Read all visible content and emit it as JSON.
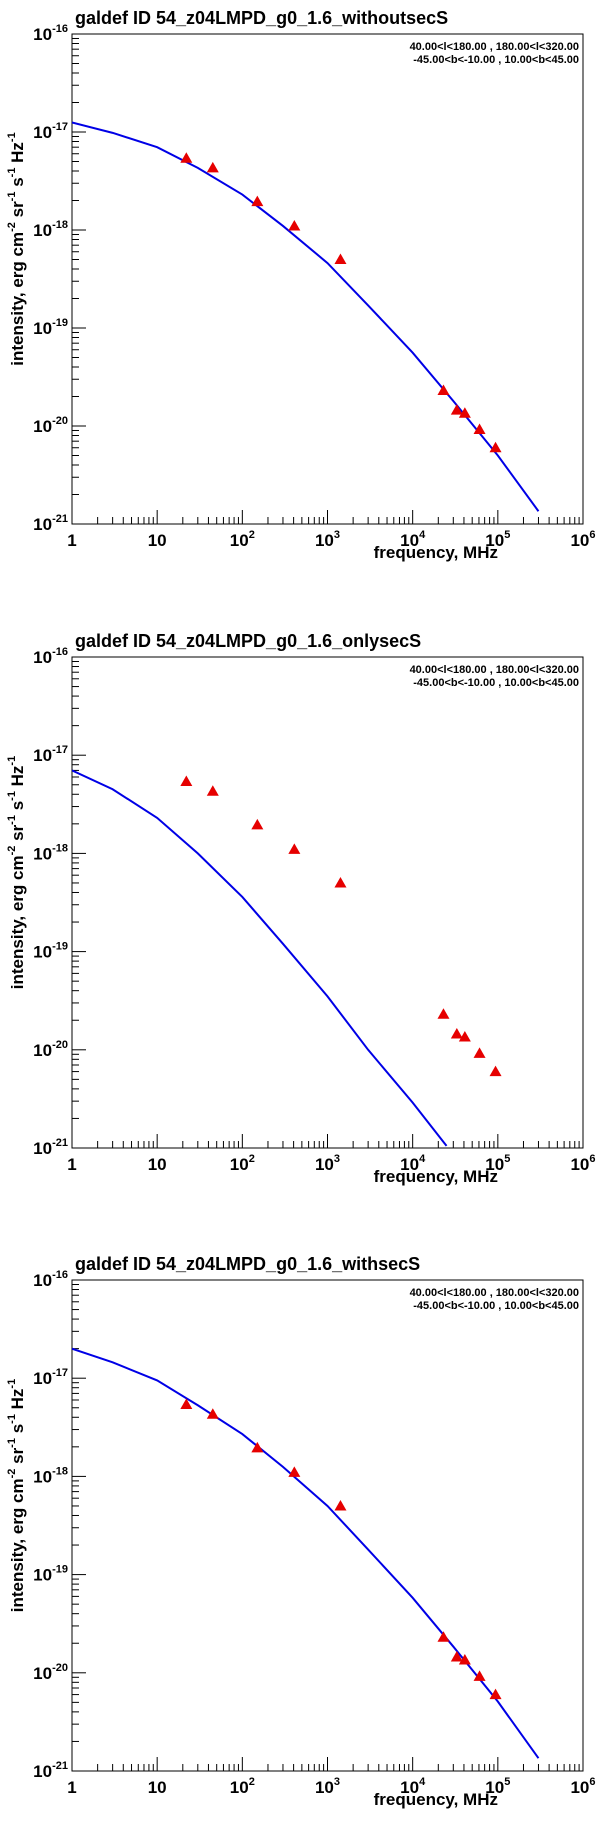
{
  "chart_data": [
    {
      "type": "line",
      "title": "galdef ID 54_z04LMPD_g0_1.6_withoutsecS",
      "region_line1": "40.00<l<180.00 , 180.00<l<320.00",
      "region_line2": "-45.00<b<-10.00 , 10.00<b<45.00",
      "xlabel": "frequency, MHz",
      "ylabel": "intensity, erg cm-2 sr-1 s-1 Hz-1",
      "xscale": "log",
      "yscale": "log",
      "xlim": [
        1,
        1000000
      ],
      "ylim": [
        1e-21,
        1e-16
      ],
      "x_ticks": [
        "1",
        "10",
        "10^2",
        "10^3",
        "10^4",
        "10^5",
        "10^6"
      ],
      "y_ticks": [
        "10^-21",
        "10^-20",
        "10^-19",
        "10^-18",
        "10^-17",
        "10^-16"
      ],
      "model_curve": {
        "x": [
          1,
          3,
          10,
          30,
          100,
          300,
          1000,
          3000,
          10000,
          30000,
          100000,
          300000
        ],
        "y": [
          1.25e-17,
          9.8e-18,
          7e-18,
          4.3e-18,
          2.3e-18,
          1.1e-18,
          4.6e-19,
          1.7e-19,
          5.6e-20,
          1.8e-20,
          5e-21,
          1.35e-21
        ]
      },
      "data_points": {
        "x": [
          22,
          45,
          150,
          408,
          1420,
          23000,
          33000,
          41000,
          61000,
          94000
        ],
        "y": [
          5.4e-18,
          4.3e-18,
          1.95e-18,
          1.1e-18,
          5e-19,
          2.3e-20,
          1.45e-20,
          1.35e-20,
          9.2e-21,
          6e-21
        ]
      }
    },
    {
      "type": "line",
      "title": "galdef ID 54_z04LMPD_g0_1.6_onlysecS",
      "region_line1": "40.00<l<180.00 , 180.00<l<320.00",
      "region_line2": "-45.00<b<-10.00 , 10.00<b<45.00",
      "xlabel": "frequency, MHz",
      "ylabel": "intensity, erg cm-2 sr-1 s-1 Hz-1",
      "xscale": "log",
      "yscale": "log",
      "xlim": [
        1,
        1000000
      ],
      "ylim": [
        1e-21,
        1e-16
      ],
      "x_ticks": [
        "1",
        "10",
        "10^2",
        "10^3",
        "10^4",
        "10^5",
        "10^6"
      ],
      "y_ticks": [
        "10^-21",
        "10^-20",
        "10^-19",
        "10^-18",
        "10^-17",
        "10^-16"
      ],
      "model_curve": {
        "x": [
          1,
          3,
          10,
          30,
          100,
          300,
          1000,
          3000,
          10000,
          25000
        ],
        "y": [
          7e-18,
          4.5e-18,
          2.3e-18,
          1e-18,
          3.6e-19,
          1.2e-19,
          3.5e-20,
          1e-20,
          2.9e-21,
          1.05e-21
        ]
      },
      "data_points": {
        "x": [
          22,
          45,
          150,
          408,
          1420,
          23000,
          33000,
          41000,
          61000,
          94000
        ],
        "y": [
          5.4e-18,
          4.3e-18,
          1.95e-18,
          1.1e-18,
          5e-19,
          2.3e-20,
          1.45e-20,
          1.35e-20,
          9.2e-21,
          6e-21
        ]
      }
    },
    {
      "type": "line",
      "title": "galdef ID 54_z04LMPD_g0_1.6_withsecS",
      "region_line1": "40.00<l<180.00 , 180.00<l<320.00",
      "region_line2": "-45.00<b<-10.00 , 10.00<b<45.00",
      "xlabel": "frequency, MHz",
      "ylabel": "intensity, erg cm-2 sr-1 s-1 Hz-1",
      "xscale": "log",
      "yscale": "log",
      "xlim": [
        1,
        1000000
      ],
      "ylim": [
        1e-21,
        1e-16
      ],
      "x_ticks": [
        "1",
        "10",
        "10^2",
        "10^3",
        "10^4",
        "10^5",
        "10^6"
      ],
      "y_ticks": [
        "10^-21",
        "10^-20",
        "10^-19",
        "10^-18",
        "10^-17",
        "10^-16"
      ],
      "model_curve": {
        "x": [
          1,
          3,
          10,
          30,
          100,
          300,
          1000,
          3000,
          10000,
          30000,
          100000,
          300000
        ],
        "y": [
          2e-17,
          1.45e-17,
          9.5e-18,
          5.3e-18,
          2.7e-18,
          1.25e-18,
          5e-19,
          1.8e-19,
          5.8e-20,
          1.85e-20,
          5.1e-21,
          1.35e-21
        ]
      },
      "data_points": {
        "x": [
          22,
          45,
          150,
          408,
          1420,
          23000,
          33000,
          41000,
          61000,
          94000
        ],
        "y": [
          5.4e-18,
          4.3e-18,
          1.95e-18,
          1.1e-18,
          5e-19,
          2.3e-20,
          1.45e-20,
          1.35e-20,
          9.2e-21,
          6e-21
        ]
      }
    }
  ]
}
